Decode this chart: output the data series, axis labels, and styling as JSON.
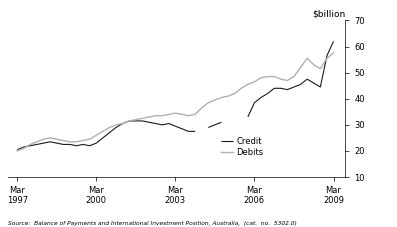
{
  "title_right": "$billion",
  "ylim": [
    10,
    70
  ],
  "yticks": [
    10,
    20,
    30,
    40,
    50,
    60,
    70
  ],
  "source_text": "Source:  Balance of Payments and International Investment Position, Australia,  (cat.  no.  5302.0)",
  "legend_entries": [
    "Credit",
    "Debits"
  ],
  "credit_color": "#1a1a1a",
  "debits_color": "#b0b0b0",
  "xtick_labels": [
    "Mar\n1997",
    "Mar\n2000",
    "Mar\n2003",
    "Mar\n2006",
    "Mar\n2009"
  ],
  "xtick_positions": [
    1997.25,
    2000.25,
    2003.25,
    2006.25,
    2009.25
  ],
  "xlim": [
    1996.9,
    2009.7
  ],
  "credit_segments": [
    {
      "x": [
        1997.25,
        1997.5,
        1997.75,
        1998.0,
        1998.25,
        1998.5,
        1998.75,
        1999.0,
        1999.25,
        1999.5,
        1999.75,
        2000.0,
        2000.25,
        2000.5,
        2000.75,
        2001.0,
        2001.25,
        2001.5,
        2001.75,
        2002.0,
        2002.25,
        2002.5,
        2002.75,
        2003.0,
        2003.25,
        2003.5,
        2003.75,
        2004.0
      ],
      "y": [
        20.5,
        21.5,
        22.0,
        22.5,
        23.0,
        23.5,
        23.0,
        22.5,
        22.5,
        22.0,
        22.5,
        22.0,
        23.0,
        25.0,
        27.0,
        29.0,
        30.5,
        31.5,
        31.5,
        31.5,
        31.0,
        30.5,
        30.0,
        30.5,
        29.5,
        28.5,
        27.5,
        27.5
      ]
    },
    {
      "x": [
        2004.5,
        2004.75,
        2005.0
      ],
      "y": [
        29.0,
        30.0,
        31.0
      ]
    },
    {
      "x": [
        2006.0,
        2006.25,
        2006.5,
        2006.75,
        2007.0,
        2007.25,
        2007.5,
        2007.75,
        2008.0,
        2008.25,
        2008.5,
        2008.75,
        2009.0,
        2009.25
      ],
      "y": [
        33.0,
        38.5,
        40.5,
        42.0,
        44.0,
        44.0,
        43.5,
        44.5,
        45.5,
        47.5,
        46.0,
        44.5,
        56.5,
        62.0
      ]
    }
  ],
  "debits_x": [
    1997.25,
    1997.5,
    1997.75,
    1998.0,
    1998.25,
    1998.5,
    1998.75,
    1999.0,
    1999.25,
    1999.5,
    1999.75,
    2000.0,
    2000.25,
    2000.5,
    2000.75,
    2001.0,
    2001.25,
    2001.5,
    2001.75,
    2002.0,
    2002.25,
    2002.5,
    2002.75,
    2003.0,
    2003.25,
    2003.5,
    2003.75,
    2004.0,
    2004.25,
    2004.5,
    2004.75,
    2005.0,
    2005.25,
    2005.5,
    2005.75,
    2006.0,
    2006.25,
    2006.5,
    2006.75,
    2007.0,
    2007.25,
    2007.5,
    2007.75,
    2008.0,
    2008.25,
    2008.5,
    2008.75,
    2009.0,
    2009.25
  ],
  "debits_y": [
    20.0,
    21.0,
    22.5,
    23.5,
    24.5,
    25.0,
    24.5,
    24.0,
    23.5,
    23.5,
    24.0,
    24.5,
    26.0,
    27.5,
    29.0,
    30.0,
    30.5,
    31.5,
    32.0,
    32.5,
    33.0,
    33.5,
    33.5,
    34.0,
    34.5,
    34.0,
    33.5,
    34.0,
    36.5,
    38.5,
    39.5,
    40.5,
    41.0,
    42.0,
    44.0,
    45.5,
    46.5,
    48.0,
    48.5,
    48.5,
    47.5,
    47.0,
    48.5,
    52.0,
    55.5,
    53.0,
    51.5,
    55.5,
    57.5
  ]
}
